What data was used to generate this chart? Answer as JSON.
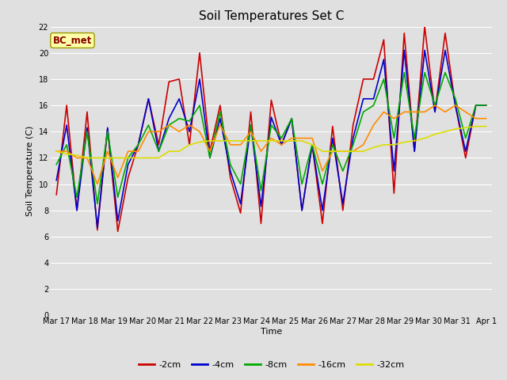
{
  "title": "Soil Temperatures Set C",
  "xlabel": "Time",
  "ylabel": "Soil Temperature (C)",
  "annotation": "BC_met",
  "ylim": [
    0,
    22
  ],
  "yticks": [
    0,
    2,
    4,
    6,
    8,
    10,
    12,
    14,
    16,
    18,
    20,
    22
  ],
  "x_labels": [
    "Mar 17",
    "Mar 18",
    "Mar 19",
    "Mar 20",
    "Mar 21",
    "Mar 22",
    "Mar 23",
    "Mar 24",
    "Mar 25",
    "Mar 26",
    "Mar 27",
    "Mar 28",
    "Mar 29",
    "Mar 30",
    "Mar 31",
    "Apr 1"
  ],
  "series": {
    "-2cm": {
      "color": "#cc0000"
    },
    "-4cm": {
      "color": "#0000cc"
    },
    "-8cm": {
      "color": "#00aa00"
    },
    "-16cm": {
      "color": "#ff8c00"
    },
    "-32cm": {
      "color": "#dddd00"
    }
  },
  "data_2cm": [
    9.2,
    16.0,
    8.0,
    15.5,
    6.5,
    14.2,
    6.4,
    10.5,
    13.0,
    16.5,
    13.0,
    17.8,
    18.0,
    13.0,
    20.0,
    12.5,
    16.0,
    10.5,
    7.8,
    15.5,
    7.0,
    16.4,
    13.0,
    15.0,
    8.0,
    13.0,
    7.0,
    14.4,
    8.0,
    14.5,
    18.0,
    18.0,
    21.0,
    9.3,
    21.5,
    12.5,
    22.0,
    15.5,
    21.5,
    16.0,
    12.0,
    16.0,
    16.0
  ],
  "data_4cm": [
    10.3,
    14.5,
    8.0,
    14.3,
    6.7,
    14.3,
    7.2,
    11.5,
    13.0,
    16.5,
    12.5,
    15.0,
    16.5,
    14.0,
    18.0,
    12.0,
    15.0,
    11.0,
    8.5,
    14.5,
    8.3,
    15.1,
    13.0,
    15.0,
    8.0,
    13.0,
    8.0,
    13.5,
    8.5,
    13.5,
    16.5,
    16.5,
    19.5,
    11.0,
    20.2,
    12.5,
    20.2,
    15.5,
    20.2,
    16.0,
    12.5,
    16.0,
    16.0
  ],
  "data_8cm": [
    11.5,
    13.0,
    9.0,
    14.0,
    8.5,
    14.0,
    9.0,
    12.0,
    13.0,
    14.5,
    12.5,
    14.5,
    15.0,
    14.8,
    16.0,
    12.0,
    15.5,
    11.5,
    10.0,
    14.5,
    9.5,
    14.5,
    13.5,
    15.0,
    10.0,
    13.0,
    10.0,
    13.0,
    11.0,
    13.0,
    15.5,
    16.0,
    18.0,
    13.5,
    18.5,
    13.5,
    18.5,
    16.0,
    18.5,
    16.5,
    13.5,
    16.0,
    16.0
  ],
  "data_16cm": [
    12.5,
    12.5,
    12.0,
    12.0,
    10.0,
    12.5,
    10.5,
    12.5,
    12.5,
    14.0,
    14.0,
    14.5,
    14.0,
    14.5,
    14.0,
    12.5,
    14.5,
    13.0,
    13.0,
    14.0,
    12.5,
    13.5,
    13.0,
    13.5,
    13.5,
    13.5,
    11.0,
    12.5,
    12.5,
    12.5,
    13.0,
    14.5,
    15.5,
    15.0,
    15.5,
    15.5,
    15.5,
    16.0,
    15.5,
    16.0,
    15.5,
    15.0,
    15.0
  ],
  "data_32cm": [
    12.5,
    12.3,
    12.2,
    12.0,
    12.0,
    12.0,
    12.0,
    12.0,
    12.0,
    12.0,
    12.0,
    12.5,
    12.5,
    13.0,
    13.2,
    13.3,
    13.3,
    13.3,
    13.3,
    13.3,
    13.3,
    13.3,
    13.3,
    13.3,
    13.3,
    13.0,
    12.5,
    12.5,
    12.5,
    12.5,
    12.5,
    12.8,
    13.0,
    13.0,
    13.2,
    13.3,
    13.5,
    13.8,
    14.0,
    14.2,
    14.3,
    14.4,
    14.4
  ],
  "n_points": 43,
  "background_color": "#e0e0e0",
  "grid_color": "#ffffff",
  "title_fontsize": 11,
  "label_fontsize": 8,
  "tick_fontsize": 7,
  "legend_fontsize": 8
}
